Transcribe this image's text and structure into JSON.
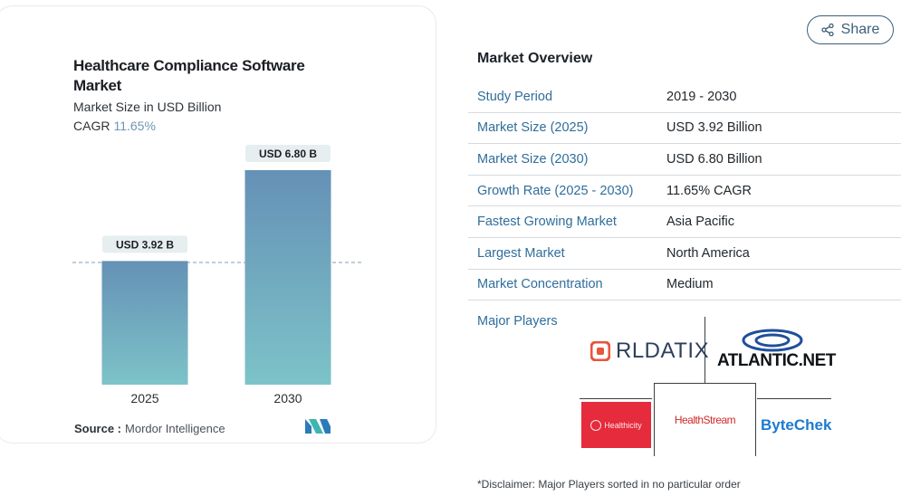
{
  "chart_card": {
    "title": "Healthcare Compliance Software Market",
    "subtitle": "Market Size in USD Billion",
    "cagr_label": "CAGR",
    "cagr_value": "11.65%",
    "source_label": "Source :",
    "source_value": "Mordor Intelligence"
  },
  "chart_data": {
    "type": "bar",
    "categories": [
      "2025",
      "2030"
    ],
    "values": [
      3.92,
      6.8
    ],
    "data_labels": [
      "USD 3.92 B",
      "USD 6.80 B"
    ],
    "ylim": [
      0,
      6.8
    ],
    "reference_line": 3.92,
    "bar_color_top": "#6591b6",
    "bar_color_bottom": "#7dc3c8"
  },
  "share": {
    "label": "Share",
    "icon": "share-icon"
  },
  "overview": {
    "title": "Market Overview",
    "rows": [
      {
        "key": "Study Period",
        "value": "2019 - 2030"
      },
      {
        "key": "Market Size (2025)",
        "value": "USD 3.92 Billion"
      },
      {
        "key": "Market Size (2030)",
        "value": "USD 6.80 Billion"
      },
      {
        "key": "Growth Rate (2025 - 2030)",
        "value": "11.65% CAGR"
      },
      {
        "key": "Fastest Growing Market",
        "value": "Asia Pacific"
      },
      {
        "key": "Largest Market",
        "value": "North America"
      },
      {
        "key": "Market Concentration",
        "value": "Medium"
      }
    ]
  },
  "players": {
    "label": "Major Players",
    "logos": {
      "rldatix": "RLDATIX",
      "atlantic": "ATLANTIC.NET",
      "healthicity": "Healthicity",
      "healthstream": "HealthStream",
      "bytechek": "ByteChek"
    }
  },
  "disclaimer": "*Disclaimer: Major Players sorted in no particular order",
  "colors": {
    "accent": "#2f6e9b",
    "share_border": "#3d5f78",
    "healthicity_red": "#e52b3c"
  }
}
